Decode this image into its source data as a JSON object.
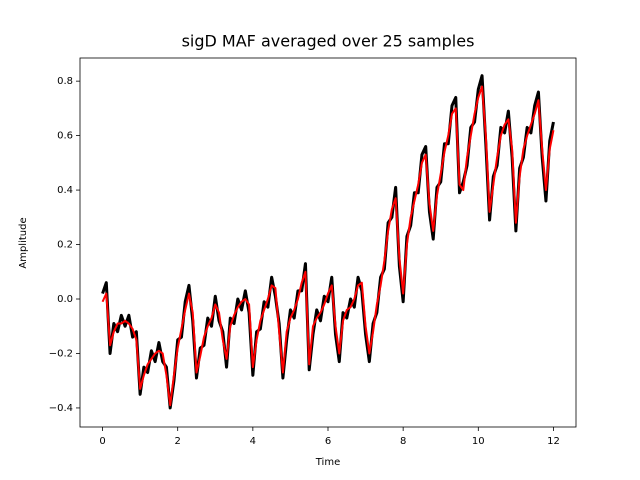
{
  "chart_data": {
    "type": "line",
    "title": "sigD MAF averaged over 25 samples",
    "x_label": "Time",
    "y_label": "Amplitude",
    "x": [
      0,
      0.1,
      0.2,
      0.3,
      0.4,
      0.5,
      0.6,
      0.7,
      0.8,
      0.9,
      1,
      1.1,
      1.2,
      1.3,
      1.4,
      1.5,
      1.6,
      1.7,
      1.8,
      1.9,
      2,
      2.1,
      2.2,
      2.3,
      2.4,
      2.5,
      2.6,
      2.7,
      2.8,
      2.9,
      3,
      3.1,
      3.2,
      3.3,
      3.4,
      3.5,
      3.6,
      3.7,
      3.8,
      3.9,
      4,
      4.1,
      4.2,
      4.3,
      4.4,
      4.5,
      4.6,
      4.7,
      4.8,
      4.9,
      5,
      5.1,
      5.2,
      5.3,
      5.4,
      5.5,
      5.6,
      5.7,
      5.8,
      5.9,
      6,
      6.1,
      6.2,
      6.3,
      6.4,
      6.5,
      6.6,
      6.7,
      6.8,
      6.9,
      7,
      7.1,
      7.2,
      7.3,
      7.4,
      7.5,
      7.6,
      7.7,
      7.8,
      7.9,
      8,
      8.1,
      8.2,
      8.3,
      8.4,
      8.5,
      8.6,
      8.7,
      8.8,
      8.9,
      9,
      9.1,
      9.2,
      9.3,
      9.4,
      9.5,
      9.6,
      9.7,
      9.8,
      9.9,
      10,
      10.1,
      10.2,
      10.3,
      10.4,
      10.5,
      10.6,
      10.7,
      10.8,
      10.9,
      11,
      11.1,
      11.2,
      11.3,
      11.4,
      11.5,
      11.6,
      11.7,
      11.8,
      11.9,
      12
    ],
    "series": [
      {
        "color": "#000000",
        "width": 3,
        "values": [
          0.02,
          0.06,
          -0.2,
          -0.09,
          -0.12,
          -0.06,
          -0.1,
          -0.06,
          -0.14,
          -0.12,
          -0.35,
          -0.25,
          -0.27,
          -0.19,
          -0.23,
          -0.16,
          -0.23,
          -0.25,
          -0.4,
          -0.3,
          -0.15,
          -0.14,
          -0.01,
          0.05,
          -0.08,
          -0.29,
          -0.18,
          -0.17,
          -0.07,
          -0.1,
          0.01,
          -0.08,
          -0.12,
          -0.25,
          -0.07,
          -0.09,
          0.0,
          -0.04,
          0.03,
          -0.05,
          -0.28,
          -0.12,
          -0.11,
          -0.01,
          -0.03,
          0.08,
          0.01,
          -0.09,
          -0.29,
          -0.15,
          -0.04,
          -0.07,
          0.03,
          0.03,
          0.13,
          -0.26,
          -0.13,
          -0.04,
          -0.08,
          0.01,
          -0.01,
          0.08,
          -0.13,
          -0.23,
          -0.05,
          -0.07,
          0.0,
          -0.03,
          0.08,
          0.03,
          -0.13,
          -0.23,
          -0.09,
          -0.05,
          0.08,
          0.11,
          0.28,
          0.3,
          0.41,
          0.12,
          -0.01,
          0.23,
          0.27,
          0.39,
          0.39,
          0.53,
          0.56,
          0.32,
          0.22,
          0.41,
          0.43,
          0.57,
          0.57,
          0.71,
          0.74,
          0.39,
          0.43,
          0.49,
          0.63,
          0.65,
          0.77,
          0.82,
          0.57,
          0.29,
          0.45,
          0.49,
          0.63,
          0.61,
          0.69,
          0.52,
          0.25,
          0.48,
          0.52,
          0.63,
          0.61,
          0.71,
          0.76,
          0.52,
          0.36,
          0.58,
          0.65
        ]
      },
      {
        "color": "#ff0000",
        "width": 2,
        "values": [
          -0.01,
          0.02,
          -0.17,
          -0.12,
          -0.09,
          -0.09,
          -0.08,
          -0.09,
          -0.11,
          -0.15,
          -0.33,
          -0.28,
          -0.24,
          -0.22,
          -0.2,
          -0.19,
          -0.2,
          -0.28,
          -0.39,
          -0.28,
          -0.18,
          -0.11,
          -0.04,
          0.02,
          -0.05,
          -0.27,
          -0.21,
          -0.14,
          -0.1,
          -0.07,
          -0.02,
          -0.05,
          -0.15,
          -0.22,
          -0.1,
          -0.06,
          -0.03,
          -0.01,
          0.0,
          -0.02,
          -0.25,
          -0.15,
          -0.08,
          -0.04,
          0.0,
          0.05,
          0.04,
          -0.12,
          -0.27,
          -0.12,
          -0.07,
          -0.04,
          0.0,
          0.06,
          0.1,
          -0.24,
          -0.1,
          -0.07,
          -0.05,
          -0.02,
          0.02,
          0.05,
          -0.1,
          -0.2,
          -0.08,
          -0.04,
          -0.03,
          0.0,
          0.05,
          0.06,
          -0.1,
          -0.2,
          -0.12,
          -0.02,
          0.05,
          0.14,
          0.25,
          0.33,
          0.37,
          0.15,
          0.02,
          0.2,
          0.3,
          0.36,
          0.42,
          0.5,
          0.53,
          0.35,
          0.25,
          0.38,
          0.46,
          0.54,
          0.6,
          0.68,
          0.7,
          0.42,
          0.4,
          0.52,
          0.6,
          0.68,
          0.74,
          0.78,
          0.6,
          0.32,
          0.42,
          0.52,
          0.6,
          0.64,
          0.66,
          0.55,
          0.28,
          0.45,
          0.55,
          0.6,
          0.64,
          0.68,
          0.73,
          0.55,
          0.4,
          0.55,
          0.62
        ]
      }
    ],
    "xlim": [
      -0.6,
      12.6
    ],
    "ylim": [
      -0.47,
      0.885
    ],
    "xticks": [
      0,
      2,
      4,
      6,
      8,
      10,
      12
    ],
    "yticks": [
      {
        "value": -0.4,
        "label": "−0.4"
      },
      {
        "value": -0.2,
        "label": "−0.2"
      },
      {
        "value": 0,
        "label": "0.0"
      },
      0.2,
      0.4,
      0.6,
      0.8
    ]
  }
}
